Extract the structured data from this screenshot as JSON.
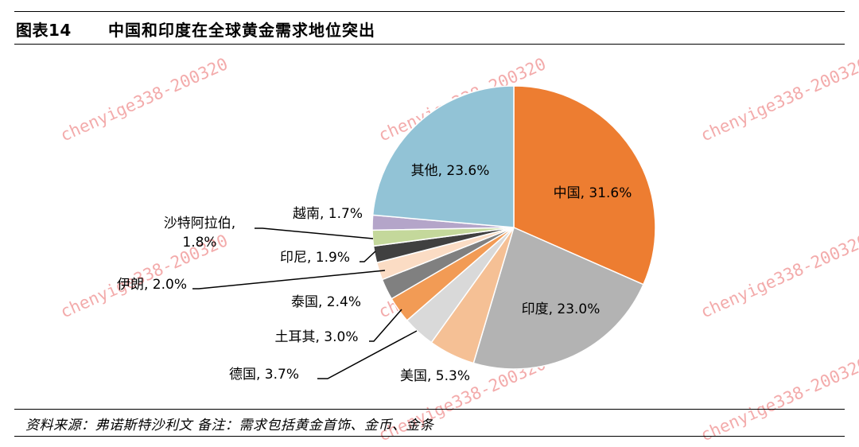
{
  "header": {
    "figure_number": "图表14",
    "title": "中国和印度在全球黄金需求地位突出"
  },
  "footer": {
    "note": "资料来源：弗诺斯特沙利文   备注：需求包括黄金首饰、金币、金条"
  },
  "watermark": {
    "text": "chenyige338-200320"
  },
  "chart_data": {
    "type": "pie",
    "slices": [
      {
        "name": "中国",
        "value": 31.6,
        "label": "中国, 31.6%",
        "color": "#ed7d31"
      },
      {
        "name": "印度",
        "value": 23.0,
        "label": "印度, 23.0%",
        "color": "#b3b3b3"
      },
      {
        "name": "美国",
        "value": 5.3,
        "label": "美国, 5.3%",
        "color": "#f5c095"
      },
      {
        "name": "德国",
        "value": 3.7,
        "label": "德国, 3.7%",
        "color": "#d9d9d9"
      },
      {
        "name": "土耳其",
        "value": 3.0,
        "label": "土耳其, 3.0%",
        "color": "#f29b55"
      },
      {
        "name": "泰国",
        "value": 2.4,
        "label": "泰国, 2.4%",
        "color": "#808080"
      },
      {
        "name": "伊朗",
        "value": 2.0,
        "label": "伊朗, 2.0%",
        "color": "#fbdcc4"
      },
      {
        "name": "印尼",
        "value": 1.9,
        "label": "印尼, 1.9%",
        "color": "#404040"
      },
      {
        "name": "沙特阿拉伯",
        "value": 1.8,
        "label": "沙特阿拉伯,|1.8%",
        "color": "#c4d89b"
      },
      {
        "name": "越南",
        "value": 1.7,
        "label": "越南, 1.7%",
        "color": "#b4a5c9"
      },
      {
        "name": "其他",
        "value": 23.6,
        "label": "其他, 23.6%",
        "color": "#92c3d6"
      }
    ]
  }
}
